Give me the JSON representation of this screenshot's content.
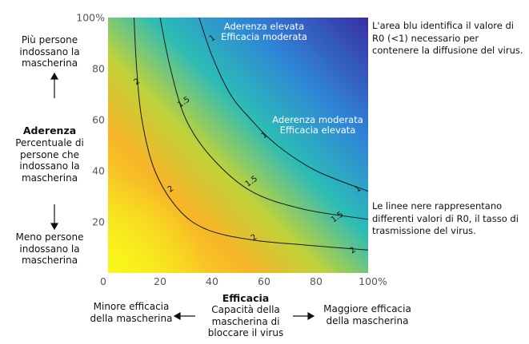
{
  "chart_data": {
    "type": "heatmap",
    "xaxis": {
      "label": "Efficacia",
      "sublabel": "Capacità della mascherina di bloccare il virus",
      "range": [
        0,
        100
      ],
      "ticks": [
        "0",
        "20",
        "40",
        "60",
        "80",
        "100%"
      ]
    },
    "yaxis": {
      "label": "Aderenza",
      "sublabel": "Percentuale di persone che indossano la mascherina",
      "range": [
        0,
        100
      ],
      "ticks": [
        "20",
        "40",
        "60",
        "80",
        "100%"
      ]
    },
    "color_scale": {
      "low": "#f6ee1a",
      "mid_high": "#2cb8c6",
      "high": "#3b2fa6"
    },
    "contours": [
      {
        "level": "2",
        "points": [
          [
            10,
            100
          ],
          [
            11,
            80
          ],
          [
            13,
            60
          ],
          [
            18,
            40
          ],
          [
            27,
            25
          ],
          [
            38,
            17
          ],
          [
            55,
            13
          ],
          [
            75,
            11
          ],
          [
            100,
            9
          ]
        ]
      },
      {
        "level": "1.5",
        "points": [
          [
            20,
            100
          ],
          [
            24,
            80
          ],
          [
            30,
            60
          ],
          [
            40,
            45
          ],
          [
            55,
            32
          ],
          [
            75,
            25
          ],
          [
            100,
            21
          ]
        ]
      },
      {
        "level": "1",
        "points": [
          [
            35,
            100
          ],
          [
            40,
            85
          ],
          [
            47,
            70
          ],
          [
            55,
            60
          ],
          [
            65,
            50
          ],
          [
            80,
            40
          ],
          [
            100,
            32
          ]
        ]
      }
    ],
    "annotations": [
      {
        "id": "ann1",
        "lines": [
          "Aderenza elevata",
          "Efficacia moderata"
        ]
      },
      {
        "id": "ann2",
        "lines": [
          "Aderenza moderata",
          "Efficacia elevata"
        ]
      }
    ]
  },
  "left_panel": {
    "more_people": "Più persone indossano la mascherina",
    "aderenza_title": "Aderenza",
    "aderenza_desc": "Percentuale di persone che indossano la mascherina",
    "fewer_people": "Meno persone indossano la mascherina"
  },
  "bottom_panel": {
    "lower_efficacy": "Minore efficacia della mascherina",
    "efficacia_title": "Efficacia",
    "efficacia_desc": "Capacità della mascherina di bloccare il virus",
    "higher_efficacy": "Maggiore efficacia della mascherina"
  },
  "notes": {
    "blue_area": "L'area blu identifica il valore di R0 (<1) necessario per contenere la diffusione del virus.",
    "black_lines": "Le linee nere rappresentano differenti valori di R0, il tasso di trasmissione del virus."
  }
}
